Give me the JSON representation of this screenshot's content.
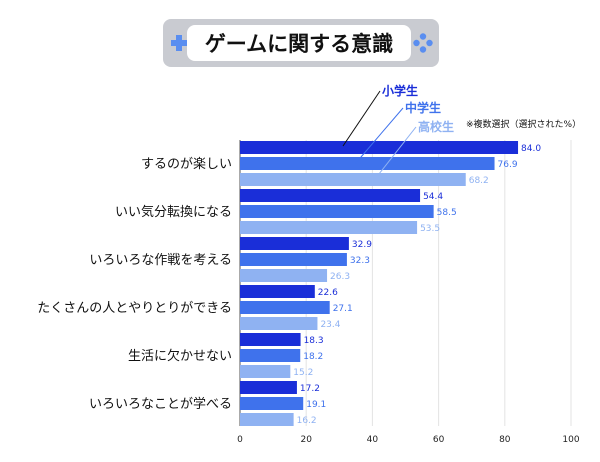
{
  "title": "ゲームに関する意識",
  "note": "※複数選択（選択された%）",
  "colors": {
    "banner_bg": "#c9cbd1",
    "icon": "#5a8ef0",
    "elementary": "#1a2ed8",
    "junior": "#3f72ec",
    "high": "#8fb2f2"
  },
  "chart_data": {
    "type": "bar",
    "orientation": "horizontal",
    "title": "ゲームに関する意識",
    "note": "※複数選択（選択された%）",
    "categories": [
      "するのが楽しい",
      "いい気分転換になる",
      "いろいろな作戦を考える",
      "たくさんの人とやりとりができる",
      "生活に欠かせない",
      "いろいろなことが学べる"
    ],
    "series": [
      {
        "name": "小学生",
        "values": [
          84.0,
          54.4,
          32.9,
          22.6,
          18.3,
          17.2
        ]
      },
      {
        "name": "中学生",
        "values": [
          76.9,
          58.5,
          32.3,
          27.1,
          18.2,
          19.1
        ]
      },
      {
        "name": "高校生",
        "values": [
          68.2,
          53.5,
          26.3,
          23.4,
          15.2,
          16.2
        ]
      }
    ],
    "value_labels": [
      [
        "84.0",
        "76.9",
        "68.2"
      ],
      [
        "54.4",
        "58.5",
        "53.5"
      ],
      [
        "32.9",
        "32.3",
        "26.3"
      ],
      [
        "22.6",
        "27.1",
        "23.4"
      ],
      [
        "18.3",
        "18.2",
        "15.2"
      ],
      [
        "17.2",
        "19.1",
        "16.2"
      ]
    ],
    "xlim": [
      0,
      100
    ],
    "xticks": [
      "0",
      "20",
      "40",
      "60",
      "80",
      "100"
    ],
    "grid": true,
    "legend": "callout labels above the first category"
  }
}
